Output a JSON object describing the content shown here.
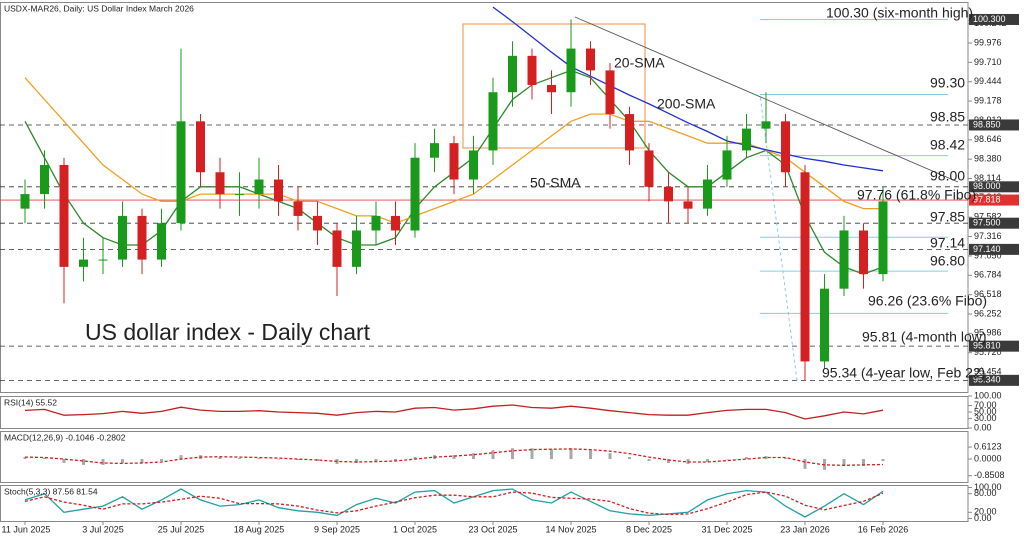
{
  "chart_data": [
    {
      "type": "candlestick",
      "title": "USDX-MAR26, Daily:  US Dollar Index March 2026",
      "categories": [
        "11 Jun 2025",
        null,
        null,
        null,
        "3 Jul 2025",
        null,
        null,
        null,
        "25 Jul 2025",
        null,
        null,
        null,
        "18 Aug 2025",
        null,
        null,
        null,
        "9 Sep 2025",
        null,
        null,
        null,
        "1 Oct 2025",
        null,
        null,
        null,
        "23 Oct 2025",
        null,
        null,
        null,
        "14 Nov 2025",
        null,
        null,
        null,
        "8 Dec 2025",
        null,
        null,
        null,
        "31 Dec 2025",
        null,
        null,
        null,
        "23 Jan 2026",
        null,
        null,
        null,
        "16 Feb 2026"
      ],
      "open": [
        97.7,
        97.9,
        98.3,
        96.9,
        97.0,
        97.0,
        97.6,
        97.0,
        97.5,
        98.9,
        98.2,
        97.9,
        97.9,
        98.1,
        97.8,
        97.6,
        97.4,
        96.9,
        97.4,
        97.6,
        97.4,
        98.4,
        98.6,
        98.1,
        98.5,
        99.3,
        99.8,
        99.4,
        99.3,
        99.9,
        99.6,
        99.0,
        98.5,
        98.0,
        97.8,
        97.7,
        98.1,
        98.5,
        98.8,
        98.9,
        98.2,
        95.6,
        96.6,
        97.4,
        96.8
      ],
      "high": [
        98.1,
        98.5,
        98.4,
        97.3,
        97.3,
        97.8,
        97.7,
        97.7,
        99.9,
        99.0,
        98.4,
        98.2,
        98.4,
        98.3,
        98.0,
        97.8,
        97.5,
        97.6,
        97.8,
        97.8,
        98.6,
        98.8,
        98.7,
        98.7,
        99.5,
        100.0,
        99.9,
        99.6,
        100.3,
        100.0,
        99.7,
        99.1,
        98.6,
        98.2,
        98.0,
        98.3,
        98.7,
        99.0,
        99.3,
        99.0,
        98.3,
        96.8,
        97.6,
        97.5,
        98.0
      ],
      "low": [
        97.5,
        97.7,
        96.4,
        96.7,
        96.8,
        96.9,
        96.8,
        96.9,
        97.4,
        98.0,
        97.7,
        97.6,
        97.7,
        97.6,
        97.4,
        97.2,
        96.5,
        96.8,
        97.2,
        97.2,
        97.3,
        98.2,
        97.9,
        97.9,
        98.3,
        99.1,
        99.2,
        99.0,
        99.1,
        99.4,
        98.8,
        98.3,
        97.8,
        97.5,
        97.5,
        97.6,
        98.0,
        98.4,
        98.6,
        98.0,
        95.34,
        95.5,
        96.5,
        96.6,
        96.7
      ],
      "close": [
        97.9,
        98.3,
        96.9,
        97.0,
        97.0,
        97.6,
        97.0,
        97.5,
        98.9,
        98.2,
        97.9,
        97.9,
        98.1,
        97.8,
        97.6,
        97.4,
        96.9,
        97.4,
        97.6,
        97.4,
        98.4,
        98.6,
        98.1,
        98.5,
        99.3,
        99.8,
        99.4,
        99.3,
        99.9,
        99.6,
        99.0,
        98.5,
        98.0,
        97.8,
        97.7,
        98.1,
        98.5,
        98.8,
        98.9,
        98.2,
        95.6,
        96.6,
        97.4,
        96.8,
        97.8
      ],
      "up_color": "#1a9a1a",
      "down_color": "#d42020",
      "series": [
        {
          "name": "20-SMA",
          "color": "#2a8a2a",
          "values": [
            98.9,
            98.4,
            97.9,
            97.5,
            97.3,
            97.2,
            97.2,
            97.4,
            97.8,
            98.0,
            98.0,
            98.0,
            97.9,
            97.8,
            97.7,
            97.5,
            97.3,
            97.2,
            97.2,
            97.3,
            97.7,
            98.0,
            98.2,
            98.4,
            98.8,
            99.2,
            99.4,
            99.5,
            99.6,
            99.5,
            99.2,
            98.9,
            98.5,
            98.2,
            98.0,
            98.0,
            98.2,
            98.4,
            98.5,
            98.3,
            97.6,
            97.1,
            96.9,
            96.8,
            96.9
          ]
        },
        {
          "name": "50-SMA",
          "color": "#f0a020",
          "values": [
            99.5,
            99.2,
            98.9,
            98.6,
            98.3,
            98.1,
            97.9,
            97.8,
            97.8,
            97.9,
            97.9,
            97.9,
            97.9,
            97.9,
            97.8,
            97.8,
            97.7,
            97.6,
            97.6,
            97.5,
            97.6,
            97.7,
            97.8,
            97.9,
            98.1,
            98.3,
            98.5,
            98.7,
            98.9,
            99.0,
            99.0,
            98.9,
            98.9,
            98.8,
            98.7,
            98.6,
            98.6,
            98.6,
            98.5,
            98.4,
            98.2,
            98.0,
            97.8,
            97.7,
            97.7
          ]
        },
        {
          "name": "200-SMA",
          "color": "#2030d0",
          "values": [
            null,
            null,
            null,
            null,
            null,
            null,
            null,
            null,
            null,
            null,
            null,
            null,
            null,
            null,
            null,
            null,
            null,
            null,
            null,
            null,
            null,
            null,
            null,
            null,
            100.47,
            100.27,
            100.06,
            99.85,
            99.65,
            99.52,
            99.39,
            99.26,
            99.14,
            99.01,
            98.88,
            98.76,
            98.63,
            98.57,
            98.51,
            98.45,
            98.39,
            98.35,
            98.3,
            98.26,
            98.22
          ]
        }
      ],
      "ylim": [
        95.18,
        100.54
      ],
      "yticks": [
        100.242,
        99.976,
        {
          "value": 99.71,
          "label": "99.710"
        },
        99.444,
        99.178,
        98.912,
        98.646,
        {
          "value": 98.38,
          "label": "98.380"
        },
        98.114,
        97.848,
        97.582,
        97.316,
        {
          "value": 97.05,
          "label": "97.050"
        },
        96.784,
        96.518,
        96.252,
        95.986,
        {
          "value": 95.72,
          "label": "95.720"
        },
        95.454
      ],
      "levels": [
        98.85,
        98.0,
        97.5,
        97.14,
        95.81,
        95.34
      ],
      "fibo_levels": [
        100.3,
        99.268,
        98.428,
        97.306,
        96.842,
        96.26
      ],
      "current_price": {
        "value": 97.818,
        "label": "97.818"
      },
      "price_labels": [
        {
          "value": 100.3,
          "label": "100.300"
        },
        {
          "value": 98.85,
          "label": "98.850"
        },
        {
          "value": 98.0,
          "label": "98.000"
        },
        {
          "value": 97.5,
          "label": "97.500"
        },
        {
          "value": 97.14,
          "label": "97.140"
        },
        {
          "value": 95.81,
          "label": "95.810"
        },
        {
          "value": 95.34,
          "label": "95.340"
        }
      ],
      "annotations": [
        "100.30 (six-month high)",
        "99.30",
        "98.85",
        "98.42",
        "98.00",
        "97.76 (61.8% Fibo)",
        "97.85",
        "97.14",
        "96.80",
        "96.26 (23.6% Fibo)",
        "95.81 (4-month low)",
        "95.34 (4-year low, Feb 22)",
        "US dollar index - Daily chart"
      ]
    },
    {
      "type": "line",
      "title": "RSI(14) 55.52",
      "series": [
        {
          "color": "#c02020",
          "values": [
            55,
            58,
            40,
            42,
            45,
            52,
            46,
            52,
            65,
            56,
            52,
            52,
            54,
            50,
            48,
            46,
            40,
            48,
            52,
            50,
            62,
            64,
            56,
            60,
            68,
            72,
            64,
            62,
            68,
            62,
            54,
            48,
            42,
            40,
            40,
            48,
            55,
            58,
            58,
            48,
            28,
            38,
            50,
            44,
            55.52
          ]
        }
      ],
      "ylim": [
        0,
        100
      ],
      "yticks": [
        {
          "value": 100,
          "label": "100.00"
        },
        {
          "value": 70,
          "label": "70.00"
        },
        {
          "value": 50,
          "label": "50.00"
        },
        {
          "value": 30,
          "label": "30.00"
        },
        {
          "value": 0,
          "label": "0.00"
        }
      ]
    },
    {
      "type": "bar",
      "title": "MACD(12,26,9) -0.1046 -0.2802",
      "series": [
        {
          "type": "bar",
          "color": "#a8a8a8",
          "values": [
            0.1,
            0.05,
            -0.2,
            -0.3,
            -0.3,
            -0.2,
            -0.2,
            -0.1,
            0.2,
            0.2,
            0.1,
            0.05,
            0.05,
            0,
            -0.05,
            -0.1,
            -0.25,
            -0.2,
            -0.1,
            -0.1,
            0.1,
            0.2,
            0.2,
            0.3,
            0.45,
            0.55,
            0.55,
            0.5,
            0.55,
            0.45,
            0.3,
            0.1,
            -0.1,
            -0.2,
            -0.25,
            -0.15,
            0,
            0.1,
            0.15,
            0.05,
            -0.5,
            -0.55,
            -0.35,
            -0.35,
            -0.1046
          ]
        },
        {
          "type": "line",
          "color": "#d02020",
          "dash": true,
          "values": [
            0.1,
            0.08,
            0,
            -0.1,
            -0.2,
            -0.22,
            -0.2,
            -0.15,
            0,
            0.1,
            0.12,
            0.1,
            0.08,
            0.05,
            0,
            -0.05,
            -0.12,
            -0.15,
            -0.13,
            -0.1,
            0,
            0.1,
            0.15,
            0.22,
            0.32,
            0.42,
            0.48,
            0.5,
            0.52,
            0.48,
            0.4,
            0.28,
            0.1,
            -0.05,
            -0.15,
            -0.15,
            -0.08,
            0,
            0.08,
            0.08,
            -0.15,
            -0.3,
            -0.32,
            -0.3,
            -0.2802
          ]
        }
      ],
      "ylim": [
        -1.17,
        1.43
      ],
      "yticks": [
        0.6123,
        {
          "value": 0,
          "label": "0.0000"
        },
        -0.8508
      ]
    },
    {
      "type": "line",
      "title": "Stoch(5,3,3) 87.56 81.54",
      "series": [
        {
          "color": "#20a0a8",
          "values": [
            60,
            80,
            20,
            30,
            40,
            70,
            30,
            60,
            95,
            60,
            40,
            45,
            60,
            35,
            25,
            20,
            10,
            45,
            65,
            50,
            85,
            90,
            50,
            70,
            90,
            95,
            60,
            50,
            85,
            55,
            25,
            15,
            10,
            15,
            20,
            60,
            80,
            90,
            85,
            40,
            5,
            40,
            80,
            45,
            87.56
          ]
        },
        {
          "color": "#d02020",
          "dash": true,
          "values": [
            55,
            70,
            53,
            43,
            30,
            47,
            47,
            53,
            62,
            72,
            65,
            48,
            48,
            47,
            40,
            27,
            18,
            25,
            40,
            53,
            67,
            75,
            75,
            70,
            70,
            85,
            82,
            68,
            65,
            63,
            55,
            32,
            17,
            13,
            15,
            32,
            53,
            77,
            85,
            72,
            43,
            28,
            42,
            55,
            81.54
          ]
        }
      ],
      "ylim": [
        -8,
        108
      ],
      "yticks": [
        {
          "value": 100,
          "label": "100.00"
        },
        {
          "value": 80,
          "label": "80.00"
        },
        {
          "value": 20,
          "label": "20.00"
        },
        {
          "value": 0,
          "label": "0.00"
        }
      ]
    }
  ]
}
